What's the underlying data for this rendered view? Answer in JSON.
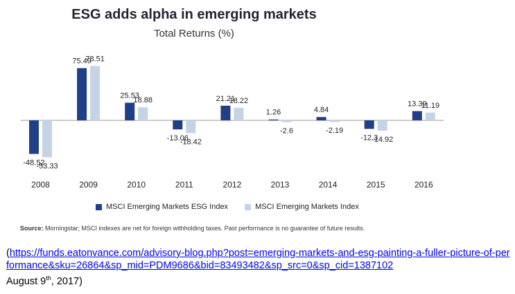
{
  "title": "ESG adds alpha in emerging markets",
  "subtitle": "Total Returns (%)",
  "colors": {
    "esg": "#1f3f86",
    "index": "#c5d3e6"
  },
  "chart_data": {
    "type": "bar",
    "categories": [
      "2008",
      "2009",
      "2010",
      "2011",
      "2012",
      "2013",
      "2014",
      "2015",
      "2016"
    ],
    "series": [
      {
        "name": "MSCI Emerging Markets ESG Index",
        "values": [
          -48.52,
          75.49,
          25.53,
          -13.06,
          21.21,
          1.26,
          4.84,
          -12.3,
          13.39
        ]
      },
      {
        "name": "MSCI Emerging Markets Index",
        "values": [
          -53.33,
          78.51,
          18.88,
          -18.42,
          18.22,
          -2.6,
          -2.19,
          -14.92,
          11.19
        ]
      }
    ],
    "value_labels": [
      [
        "-48.52",
        "75.49",
        "25.53",
        "-13.06",
        "21.21",
        "1.26",
        "4.84",
        "-12.3",
        "13.39"
      ],
      [
        "-53.33",
        "78.51",
        "18.88",
        "-18.42",
        "18.22",
        "-2.6",
        "-2.19",
        "-14.92",
        "11.19"
      ]
    ],
    "grid": false
  },
  "source": {
    "label": "Source:",
    "text": "Morningstar; MSCI indexes are net for foreign withholding taxes. Past performance is no guarantee of future results."
  },
  "citation": {
    "link": "https://funds.eatonvance.com/advisory-blog.php?post=emerging-markets-and-esg-painting-a-fuller-picture-of-performance&sku=26864&sp_mid=PDM9686&bid=83493482&sp_src=0&sp_cid=1387102",
    "date_prefix": "August 9",
    "date_sup": "th",
    "date_suffix": ", 2017)"
  }
}
